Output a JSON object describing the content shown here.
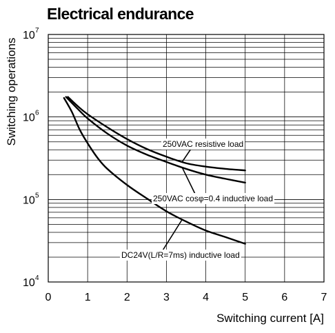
{
  "chart_data": {
    "type": "line",
    "title": "Electrical endurance",
    "xlabel": "Switching current [A]",
    "ylabel": "Switching operations",
    "xlim": [
      0,
      7
    ],
    "ylim": [
      10000,
      10000000
    ],
    "y_scale": "log",
    "grid": true,
    "x_ticks": [
      "0",
      "1",
      "2",
      "3",
      "4",
      "5",
      "6",
      "7"
    ],
    "y_ticks": [
      {
        "base": "10",
        "exp": "4",
        "value": 10000
      },
      {
        "base": "10",
        "exp": "5",
        "value": 100000
      },
      {
        "base": "10",
        "exp": "6",
        "value": 1000000
      },
      {
        "base": "10",
        "exp": "7",
        "value": 10000000
      }
    ],
    "series": [
      {
        "name": "250VAC resistive load",
        "x": [
          0.5,
          0.75,
          1,
          1.5,
          2,
          2.5,
          3,
          3.5,
          4,
          4.5,
          5
        ],
        "y": [
          1750000,
          1350000,
          1080000,
          750000,
          540000,
          410000,
          330000,
          275000,
          250000,
          235000,
          225000
        ]
      },
      {
        "name": "250VAC cosφ=0.4 inductive load",
        "x": [
          0.45,
          0.75,
          1,
          1.5,
          2,
          2.5,
          3,
          3.5,
          4,
          4.5,
          5
        ],
        "y": [
          1750000,
          1250000,
          960000,
          630000,
          450000,
          350000,
          285000,
          235000,
          200000,
          178000,
          160000
        ]
      },
      {
        "name": "DC24V(L/R=7ms) inductive load",
        "x": [
          0.4,
          0.6,
          0.8,
          1,
          1.25,
          1.5,
          2,
          2.5,
          3,
          3.5,
          4,
          4.5,
          5
        ],
        "y": [
          1700000,
          1150000,
          700000,
          480000,
          320000,
          235000,
          150000,
          103000,
          72000,
          54000,
          42000,
          35000,
          29000
        ]
      }
    ],
    "annotations": [
      {
        "text": "250VAC resistive load",
        "series": 0,
        "at_x": 3.4
      },
      {
        "text": "250VAC cosφ=0.4 inductive load",
        "series": 1,
        "at_x": 3.4
      },
      {
        "text": "DC24V(L/R=7ms) inductive load",
        "series": 2,
        "at_x": 3.4
      }
    ]
  }
}
